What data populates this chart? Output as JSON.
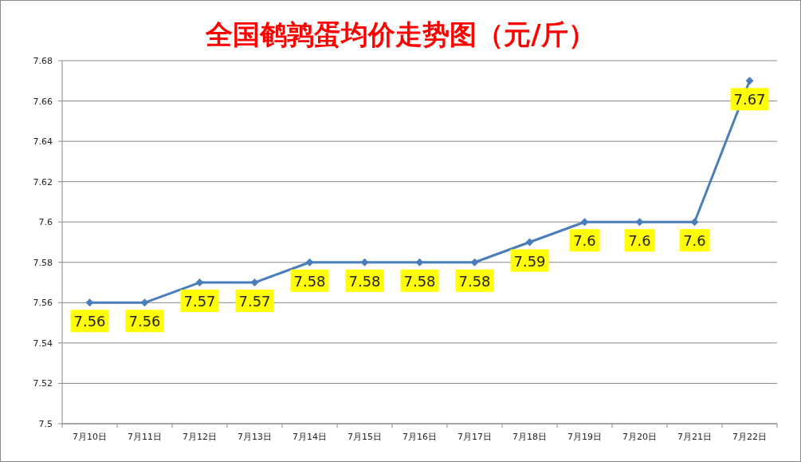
{
  "chart_data": {
    "type": "line",
    "title": "全国鹌鹑蛋均价走势图（元/斤）",
    "categories": [
      "7月10日",
      "7月11日",
      "7月12日",
      "7月13日",
      "7月14日",
      "7月15日",
      "7月16日",
      "7月17日",
      "7月18日",
      "7月19日",
      "7月20日",
      "7月21日",
      "7月22日"
    ],
    "series": [
      {
        "color": "#4a7ebb",
        "values": [
          7.56,
          7.56,
          7.57,
          7.57,
          7.58,
          7.58,
          7.58,
          7.58,
          7.59,
          7.6,
          7.6,
          7.6,
          7.67
        ]
      }
    ],
    "ylim": [
      7.5,
      7.68
    ],
    "yticks": [
      7.5,
      7.52,
      7.54,
      7.56,
      7.58,
      7.6,
      7.62,
      7.64,
      7.66,
      7.68
    ],
    "grid": "y",
    "marker": "diamond",
    "line_style": "solid",
    "data_labels": true
  }
}
